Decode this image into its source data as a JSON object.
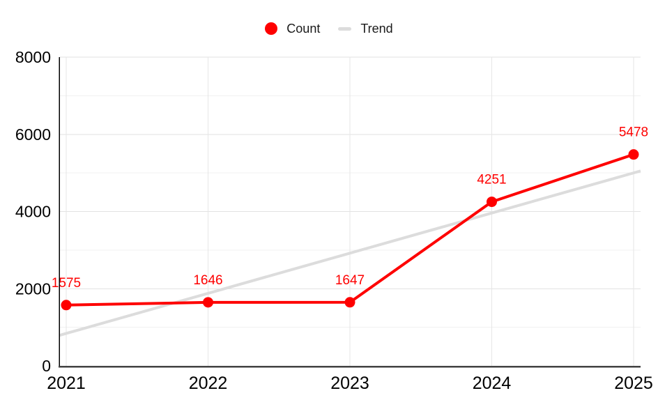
{
  "chart_data": {
    "type": "line",
    "title": "",
    "xlabel": "",
    "ylabel": "",
    "categories": [
      "2021",
      "2022",
      "2023",
      "2024",
      "2025"
    ],
    "series": [
      {
        "name": "Count",
        "values": [
          1575,
          1646,
          1647,
          4251,
          5478
        ],
        "color": "#fe0000",
        "marker": "circle",
        "show_point_labels": true,
        "extend_to_plot_edges": false
      },
      {
        "name": "Trend",
        "values": [
          840,
          1880,
          2920,
          3960,
          5000
        ],
        "color": "#dcdcdc",
        "marker": "line",
        "show_point_labels": false,
        "extend_to_plot_edges": true
      }
    ],
    "point_labels": [
      "1575",
      "1646",
      "1647",
      "4251",
      "5478"
    ],
    "ylim": [
      0,
      8000
    ],
    "y_major_ticks": [
      0,
      2000,
      4000,
      6000,
      8000
    ],
    "y_minor_step": 1000,
    "grid": "on",
    "legend_position": "top"
  },
  "legend": {
    "items": [
      {
        "label": "Count",
        "color": "#fe0000",
        "marker": "circle"
      },
      {
        "label": "Trend",
        "color": "#dcdcdc",
        "marker": "line"
      }
    ]
  },
  "axes": {
    "y_tick_labels": [
      "0",
      "2000",
      "4000",
      "6000",
      "8000"
    ],
    "x_tick_labels": [
      "2021",
      "2022",
      "2023",
      "2024",
      "2025"
    ]
  },
  "colors": {
    "series_count": "#fe0000",
    "series_trend": "#dcdcdc",
    "data_label_text": "#fe0000",
    "axis_text": "#000000",
    "legend_text": "#1a1a1a",
    "gridline_major": "#e2e2e2",
    "gridline_minor": "#f0f0f0",
    "gridline_vertical": "#e6e6e6",
    "x_axis_line": "#424242",
    "y_axis_line": "#000000",
    "background": "#ffffff"
  }
}
